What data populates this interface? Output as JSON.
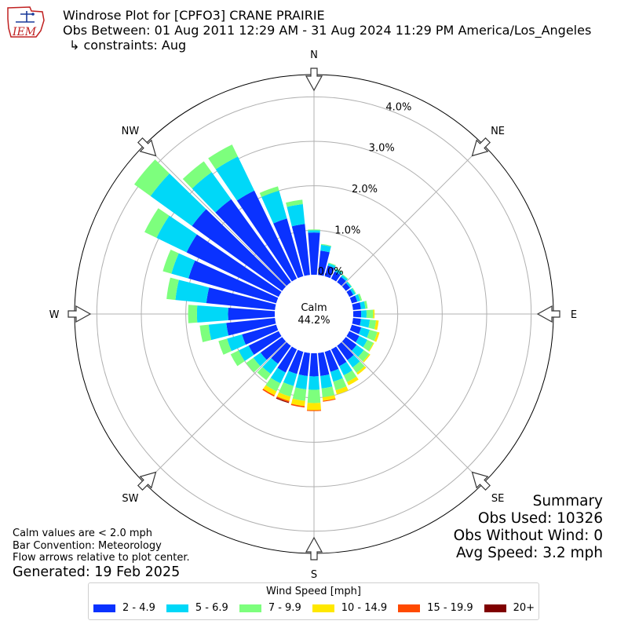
{
  "header": {
    "title": "Windrose Plot for [CPFO3] CRANE PRAIRIE",
    "period": "Obs Between: 01 Aug 2011 12:29 AM - 31 Aug 2024 11:29 PM America/Los_Angeles",
    "constraints": "↳ constraints: Aug",
    "logo_text": "IEM"
  },
  "summary": {
    "heading": "Summary",
    "obs_used": "Obs Used: 10326",
    "obs_without_wind": "Obs Without Wind: 0",
    "avg_speed": "Avg Speed: 3.2 mph"
  },
  "notes": {
    "calm_note": "Calm values are < 2.0 mph",
    "bar_convention": "Bar Convention: Meteorology",
    "flow_arrows": "Flow arrows relative to plot center.",
    "generated": "Generated: 19 Feb 2025"
  },
  "chart_data": {
    "type": "windrose",
    "calm_label": "Calm",
    "calm_percent": "44.2%",
    "radial_unit": "percent",
    "radial_ticks": [
      "0.0%",
      "1.0%",
      "2.0%",
      "3.0%",
      "4.0%"
    ],
    "radial_max": 4.5,
    "grid": true,
    "compass_labels": [
      "N",
      "NE",
      "E",
      "SE",
      "S",
      "SW",
      "W",
      "NW"
    ],
    "legend_title": "Wind Speed [mph]",
    "legend_placement": "bottom",
    "bins": [
      {
        "label": "2 - 4.9",
        "color": "#0a32ff"
      },
      {
        "label": "5 - 6.9",
        "color": "#00d8f8"
      },
      {
        "label": "7 - 9.9",
        "color": "#7dff7d"
      },
      {
        "label": "10 - 14.9",
        "color": "#ffe800"
      },
      {
        "label": "15 - 19.9",
        "color": "#ff4a00"
      },
      {
        "label": "20+",
        "color": "#7f0000"
      }
    ],
    "directions": [
      0,
      10,
      20,
      30,
      40,
      50,
      60,
      70,
      80,
      90,
      100,
      110,
      120,
      130,
      140,
      150,
      160,
      170,
      180,
      190,
      200,
      210,
      220,
      230,
      240,
      250,
      260,
      270,
      280,
      290,
      300,
      310,
      320,
      330,
      340,
      350
    ],
    "cumulative": [
      [
        0.95,
        1.0,
        1.02,
        1.02,
        1.02,
        1.02
      ],
      [
        0.55,
        0.68,
        0.7,
        0.7,
        0.7,
        0.7
      ],
      [
        0.25,
        0.3,
        0.32,
        0.32,
        0.32,
        0.32
      ],
      [
        0.18,
        0.24,
        0.26,
        0.26,
        0.26,
        0.26
      ],
      [
        0.15,
        0.2,
        0.22,
        0.22,
        0.22,
        0.22
      ],
      [
        0.12,
        0.16,
        0.17,
        0.17,
        0.17,
        0.17
      ],
      [
        0.1,
        0.15,
        0.17,
        0.17,
        0.17,
        0.17
      ],
      [
        0.13,
        0.2,
        0.24,
        0.24,
        0.24,
        0.24
      ],
      [
        0.18,
        0.28,
        0.33,
        0.33,
        0.33,
        0.33
      ],
      [
        0.18,
        0.3,
        0.45,
        0.48,
        0.48,
        0.48
      ],
      [
        0.18,
        0.38,
        0.52,
        0.58,
        0.58,
        0.58
      ],
      [
        0.22,
        0.42,
        0.6,
        0.65,
        0.65,
        0.65
      ],
      [
        0.25,
        0.45,
        0.6,
        0.62,
        0.62,
        0.62
      ],
      [
        0.3,
        0.5,
        0.65,
        0.68,
        0.68,
        0.68
      ],
      [
        0.4,
        0.6,
        0.75,
        0.8,
        0.8,
        0.8
      ],
      [
        0.42,
        0.65,
        0.82,
        0.9,
        0.9,
        0.9
      ],
      [
        0.47,
        0.7,
        0.9,
        1.0,
        1.0,
        1.0
      ],
      [
        0.52,
        0.8,
        1.0,
        1.08,
        1.1,
        1.1
      ],
      [
        0.52,
        0.82,
        1.12,
        1.28,
        1.3,
        1.3
      ],
      [
        0.52,
        0.82,
        1.08,
        1.2,
        1.23,
        1.23
      ],
      [
        0.52,
        0.8,
        1.05,
        1.15,
        1.18,
        1.2
      ],
      [
        0.58,
        0.85,
        1.05,
        1.15,
        1.18,
        1.18
      ],
      [
        0.5,
        0.78,
        0.95,
        0.95,
        0.95,
        0.95
      ],
      [
        0.6,
        0.8,
        1.0,
        1.0,
        1.0,
        1.0
      ],
      [
        0.75,
        1.0,
        1.2,
        1.2,
        1.2,
        1.2
      ],
      [
        0.8,
        1.15,
        1.35,
        1.35,
        1.35,
        1.35
      ],
      [
        1.1,
        1.5,
        1.7,
        1.7,
        1.7,
        1.7
      ],
      [
        1.05,
        1.75,
        1.95,
        1.95,
        1.95,
        1.95
      ],
      [
        1.55,
        2.25,
        2.45,
        2.45,
        2.45,
        2.45
      ],
      [
        2.05,
        2.45,
        2.65,
        2.65,
        2.65,
        2.65
      ],
      [
        2.3,
        3.05,
        3.35,
        3.35,
        3.35,
        3.35
      ],
      [
        2.5,
        3.65,
        4.1,
        4.1,
        4.1,
        4.1
      ],
      [
        2.3,
        3.05,
        3.35,
        3.35,
        3.35,
        3.35
      ],
      [
        2.2,
        3.05,
        3.35,
        3.35,
        3.35,
        3.35
      ],
      [
        1.35,
        2.0,
        2.1,
        2.1,
        2.1,
        2.1
      ],
      [
        1.15,
        1.6,
        1.7,
        1.7,
        1.7,
        1.7
      ]
    ]
  }
}
